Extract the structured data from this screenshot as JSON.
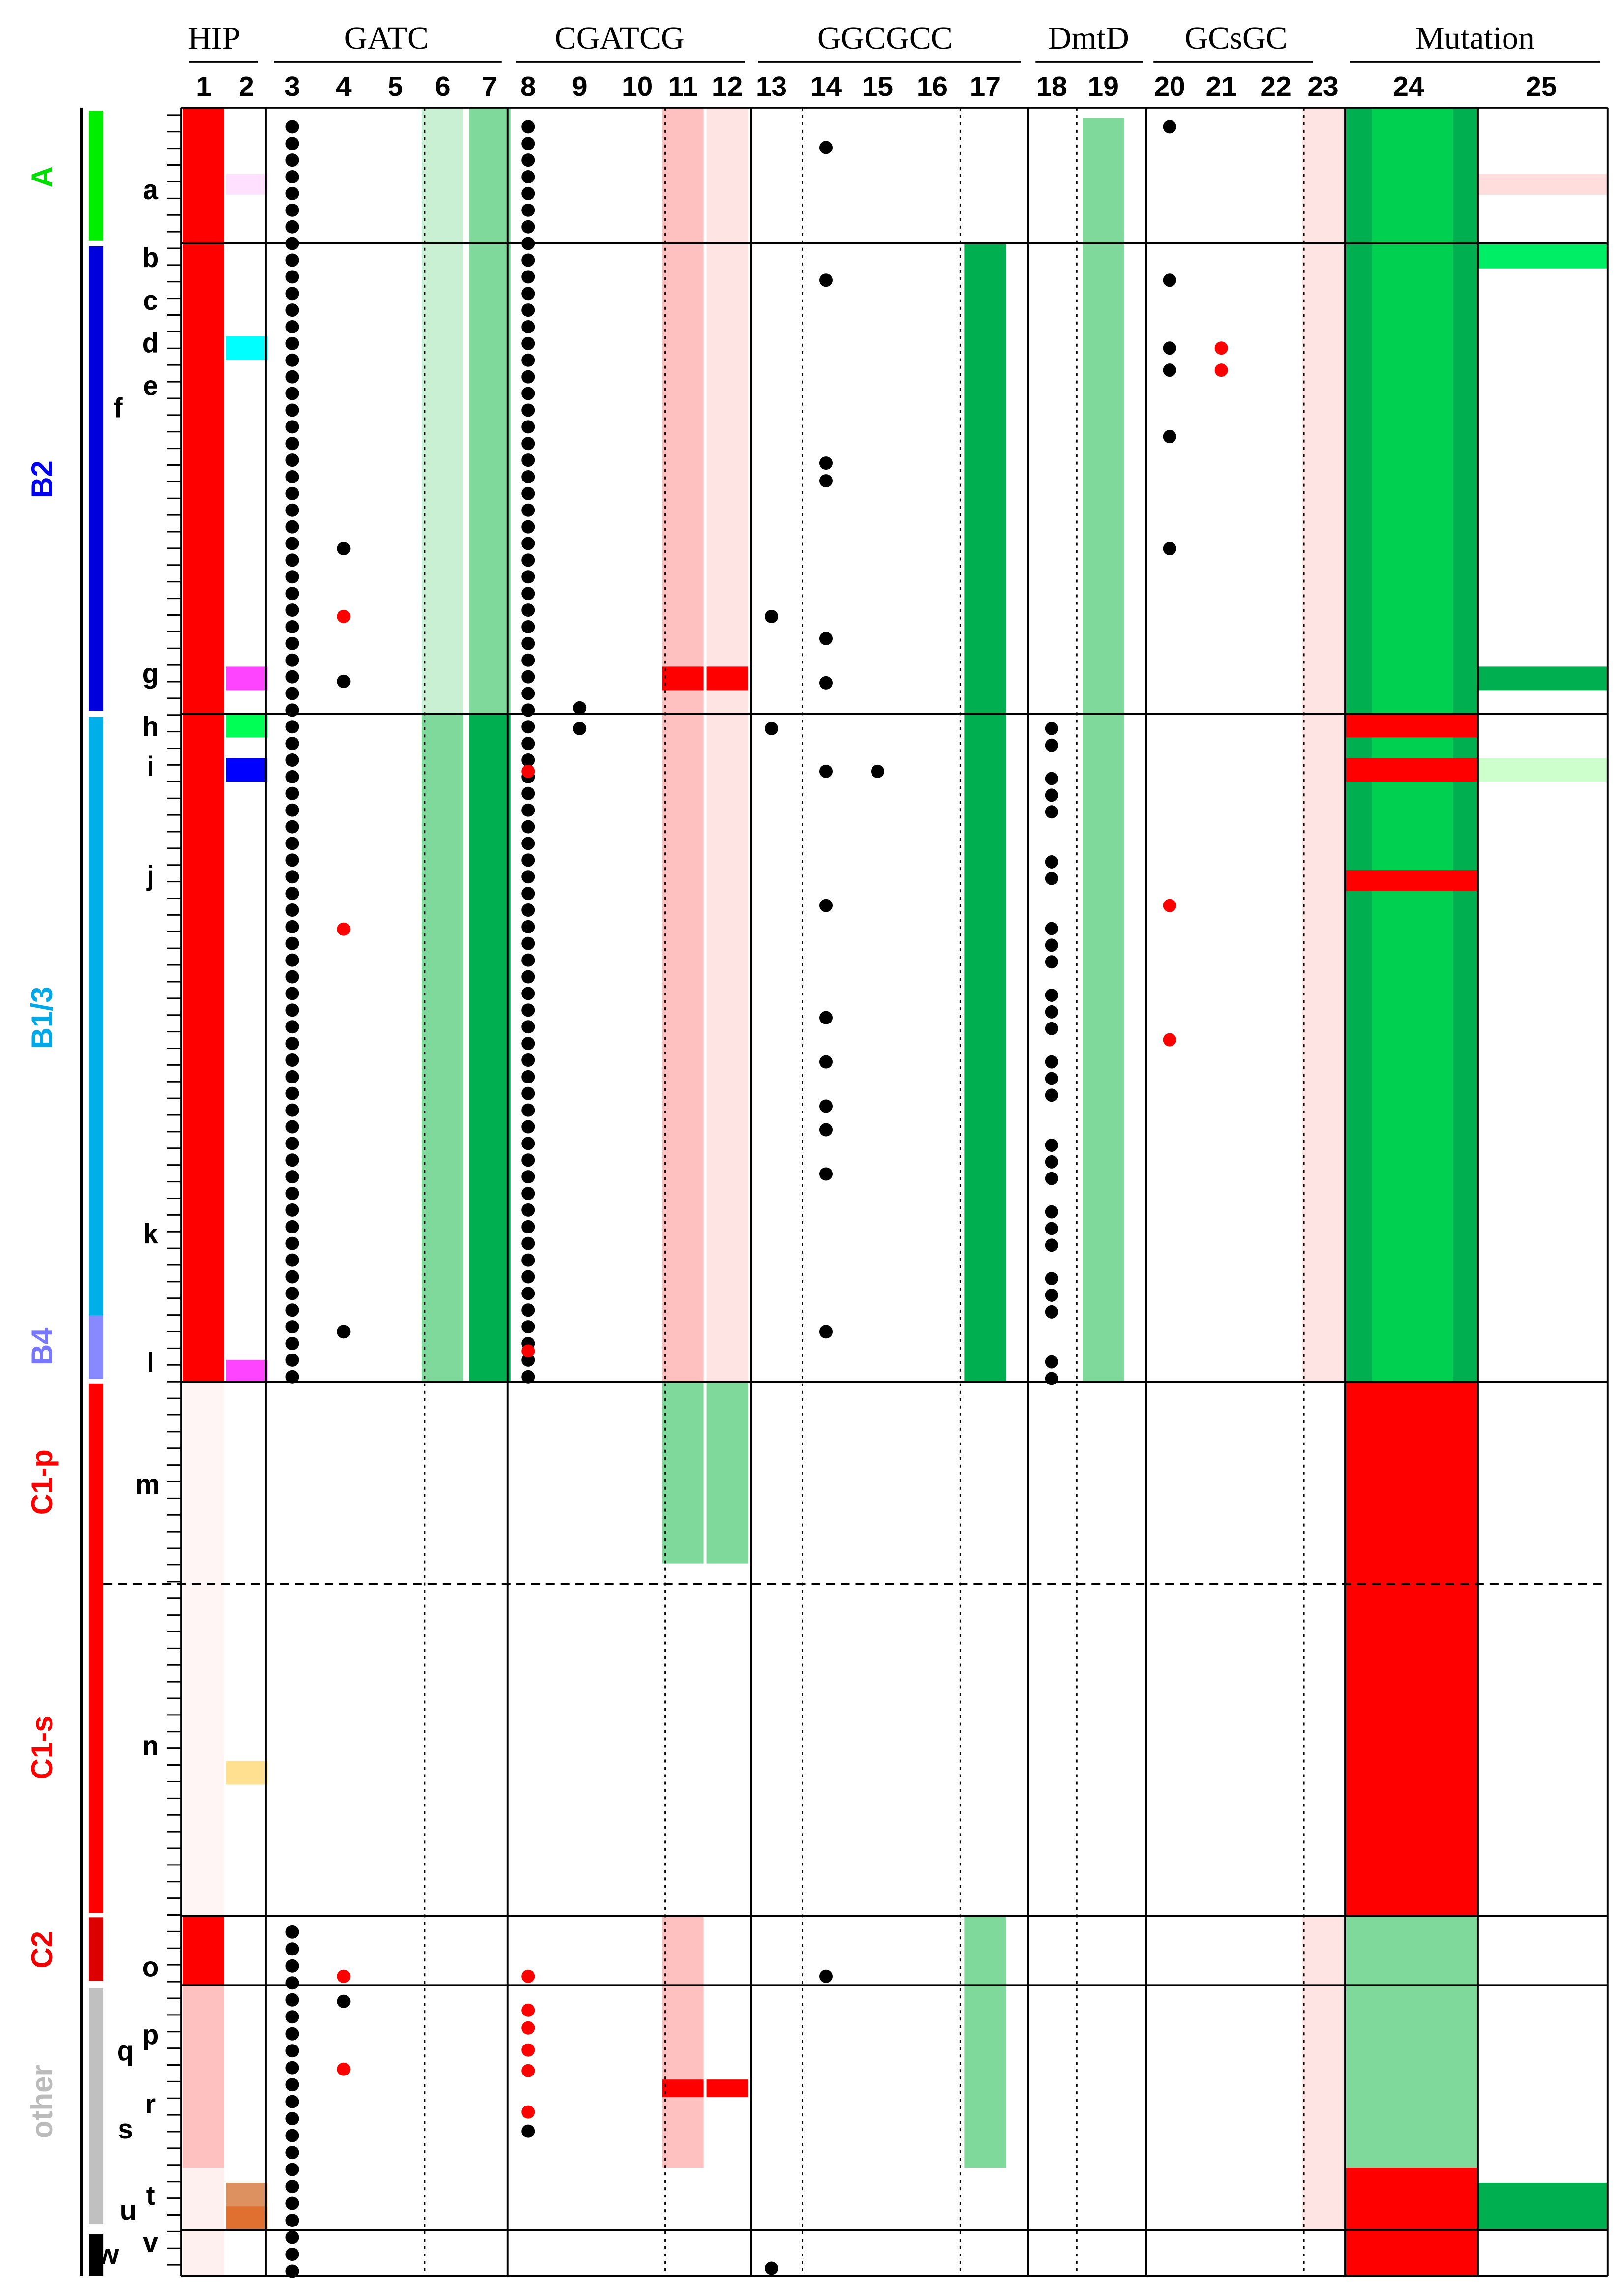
{
  "header": {
    "groups": [
      "HIP",
      "GATC",
      "CGATCG",
      "GGCGCC",
      "DmtD",
      "GCsGC",
      "Mutation"
    ],
    "columns": [
      1,
      2,
      3,
      4,
      5,
      6,
      7,
      8,
      9,
      10,
      11,
      12,
      13,
      14,
      15,
      16,
      17,
      18,
      19,
      20,
      21,
      22,
      23,
      24,
      25
    ]
  },
  "groups": [
    "A",
    "B2",
    "B1/3",
    "B4",
    "C1-p",
    "C1-s",
    "C2",
    "other"
  ],
  "rows": [
    "a",
    "b",
    "c",
    "d",
    "e",
    "f",
    "g",
    "h",
    "i",
    "j",
    "k",
    "l",
    "m",
    "n",
    "o",
    "p",
    "q",
    "r",
    "s",
    "t",
    "u",
    "v",
    "w"
  ]
}
